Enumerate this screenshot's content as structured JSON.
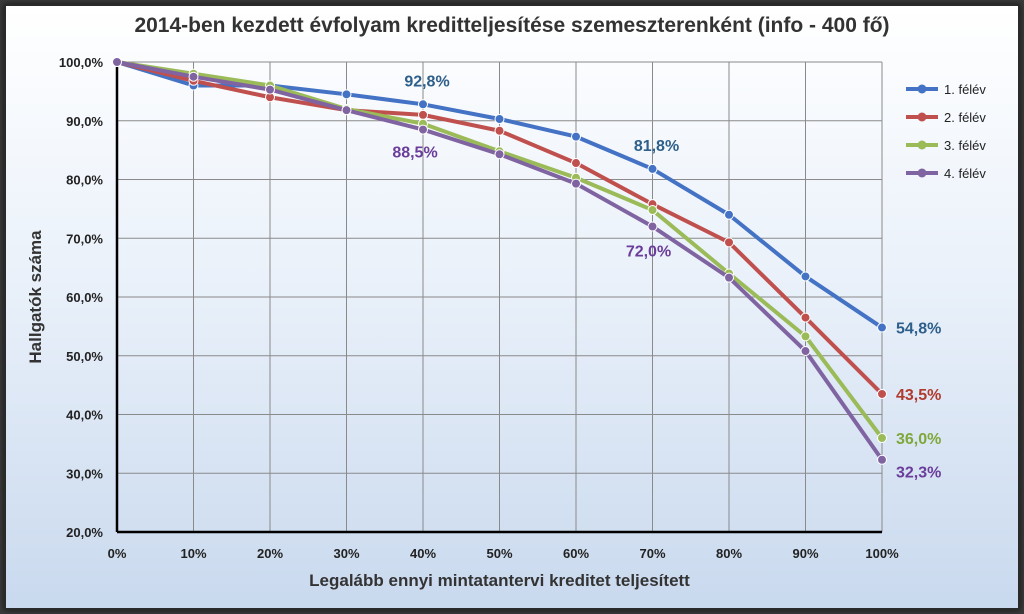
{
  "chart_data": {
    "type": "line",
    "title": "2014-ben kezdett évfolyam kreditteljesítése szemeszterenként (info - 400 fő)",
    "xlabel": "Legalább ennyi mintatantervi kreditet teljesített",
    "ylabel": "Hallgatók száma",
    "categories": [
      "0%",
      "10%",
      "20%",
      "30%",
      "40%",
      "50%",
      "60%",
      "70%",
      "80%",
      "90%",
      "100%"
    ],
    "ylim": [
      20,
      100
    ],
    "yticks": [
      "20,0%",
      "30,0%",
      "40,0%",
      "50,0%",
      "60,0%",
      "70,0%",
      "80,0%",
      "90,0%",
      "100,0%"
    ],
    "grid": true,
    "legend_position": "right",
    "series": [
      {
        "name": "1. félév",
        "color": "#4472c4",
        "values": [
          100,
          96.0,
          96.0,
          94.5,
          92.8,
          90.3,
          87.3,
          81.8,
          74.0,
          63.5,
          54.8
        ]
      },
      {
        "name": "2. félév",
        "color": "#c0504d",
        "values": [
          100,
          96.8,
          94.0,
          91.8,
          91.0,
          88.3,
          82.8,
          75.8,
          69.3,
          56.5,
          43.5
        ]
      },
      {
        "name": "3. félév",
        "color": "#9bbb59",
        "values": [
          100,
          98.0,
          96.0,
          92.0,
          89.5,
          84.8,
          80.3,
          74.8,
          64.0,
          53.3,
          36.0
        ]
      },
      {
        "name": "4. félév",
        "color": "#8064a2",
        "values": [
          100,
          97.5,
          95.3,
          91.8,
          88.5,
          84.3,
          79.3,
          72.0,
          63.3,
          50.8,
          32.3
        ]
      }
    ],
    "annotations": [
      {
        "series": 0,
        "index": 4,
        "text": "92,8%",
        "color": "#2e5f8a"
      },
      {
        "series": 0,
        "index": 7,
        "text": "81,8%",
        "color": "#2e5f8a"
      },
      {
        "series": 0,
        "index": 10,
        "text": "54,8%",
        "color": "#2e5f8a"
      },
      {
        "series": 1,
        "index": 10,
        "text": "43,5%",
        "color": "#b03a2e"
      },
      {
        "series": 2,
        "index": 10,
        "text": "36,0%",
        "color": "#7fa83a"
      },
      {
        "series": 3,
        "index": 4,
        "text": "88,5%",
        "color": "#6a3d9a"
      },
      {
        "series": 3,
        "index": 7,
        "text": "72,0%",
        "color": "#6a3d9a"
      },
      {
        "series": 3,
        "index": 10,
        "text": "32,3%",
        "color": "#6a3d9a"
      }
    ]
  }
}
